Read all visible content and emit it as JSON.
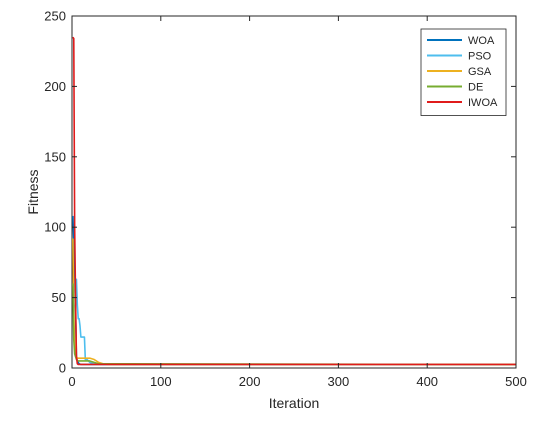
{
  "chart_data": {
    "type": "line",
    "title": "",
    "xlabel": "Iteration",
    "ylabel": "Fitness",
    "xlim": [
      0,
      500
    ],
    "ylim": [
      0,
      250
    ],
    "xticks": [
      0,
      100,
      200,
      300,
      400,
      500
    ],
    "yticks": [
      0,
      50,
      100,
      150,
      200,
      250
    ],
    "grid": false,
    "legend_position": "top-right",
    "series": [
      {
        "name": "WOA",
        "color": "#0072BD",
        "x": [
          1,
          2,
          3,
          4,
          5,
          6,
          8,
          10,
          500
        ],
        "y": [
          108,
          90,
          70,
          40,
          8,
          5,
          3,
          2.5,
          2.5
        ]
      },
      {
        "name": "PSO",
        "color": "#4DBEEE",
        "x": [
          1,
          2,
          3,
          4,
          5,
          6,
          7,
          8,
          9,
          10,
          11,
          12,
          13,
          14,
          15,
          17,
          20,
          25,
          30,
          35,
          500
        ],
        "y": [
          60,
          55,
          50,
          45,
          63,
          45,
          35,
          35,
          30,
          22,
          22,
          22,
          22,
          22,
          6,
          6,
          4,
          3,
          3,
          2.5,
          2.5
        ]
      },
      {
        "name": "GSA",
        "color": "#EDB120",
        "x": [
          1,
          2,
          3,
          4,
          5,
          6,
          8,
          10,
          15,
          20,
          25,
          30,
          35,
          40,
          500
        ],
        "y": [
          92,
          40,
          15,
          10,
          8,
          7,
          7,
          7,
          7,
          7,
          6,
          4,
          3,
          2.5,
          2.5
        ]
      },
      {
        "name": "DE",
        "color": "#77AC30",
        "x": [
          1,
          2,
          3,
          4,
          5,
          6,
          8,
          10,
          15,
          20,
          25,
          30,
          500
        ],
        "y": [
          60,
          20,
          10,
          8,
          6,
          5,
          5,
          5,
          5,
          5,
          4,
          3,
          2.5
        ]
      },
      {
        "name": "IWOA",
        "color": "#E01B1B",
        "x": [
          1,
          2,
          3,
          4,
          5,
          6,
          7,
          8,
          500
        ],
        "y": [
          235,
          234,
          100,
          50,
          8,
          3,
          2.5,
          2.5,
          2.5
        ]
      }
    ]
  }
}
